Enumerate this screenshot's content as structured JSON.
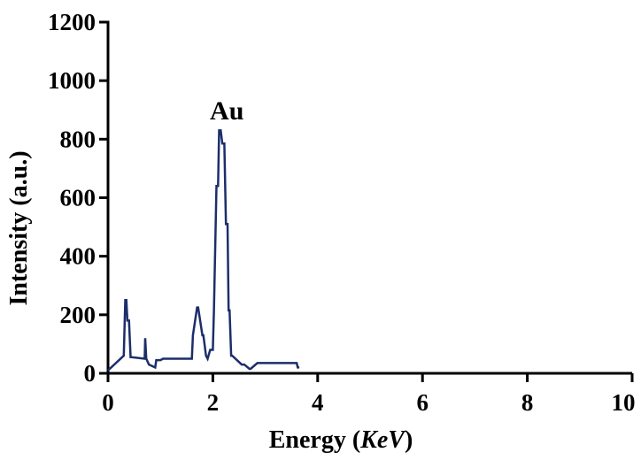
{
  "chart_data": {
    "type": "line",
    "title": "",
    "xlabel_main": "Energy (",
    "xlabel_unit": "KeV",
    "xlabel_close": ")",
    "ylabel": "Intensity (a.u.)",
    "xlim": [
      0,
      10
    ],
    "ylim": [
      0,
      1200
    ],
    "x_ticks": [
      0,
      2,
      4,
      6,
      8,
      10
    ],
    "y_ticks": [
      0,
      200,
      400,
      600,
      800,
      1000,
      1200
    ],
    "grid": false,
    "line_color": "#1c2e6b",
    "annotations": [
      {
        "text": "Au",
        "x": 2.2,
        "y": 880
      }
    ],
    "series": [
      {
        "x": [
          0.0,
          0.3,
          0.33,
          0.35,
          0.37,
          0.4,
          0.43,
          0.45,
          0.7,
          0.71,
          0.73,
          0.78,
          0.9,
          0.92,
          1.0,
          1.05,
          1.6,
          1.62,
          1.7,
          1.72,
          1.8,
          1.82,
          1.87,
          1.9,
          1.95,
          2.0,
          2.02,
          2.07,
          2.1,
          2.12,
          2.15,
          2.18,
          2.2,
          2.22,
          2.25,
          2.28,
          2.3,
          2.32,
          2.35,
          2.37,
          2.55,
          2.6,
          2.7,
          2.72,
          2.85,
          2.87,
          3.6,
          3.62,
          3.65
        ],
        "y": [
          10,
          60,
          250,
          250,
          180,
          180,
          55,
          55,
          50,
          120,
          50,
          30,
          20,
          45,
          45,
          50,
          50,
          130,
          225,
          225,
          130,
          130,
          60,
          50,
          80,
          80,
          210,
          640,
          640,
          830,
          830,
          785,
          785,
          785,
          510,
          510,
          215,
          215,
          60,
          60,
          30,
          30,
          15,
          15,
          35,
          35,
          35,
          20,
          20
        ]
      }
    ]
  }
}
